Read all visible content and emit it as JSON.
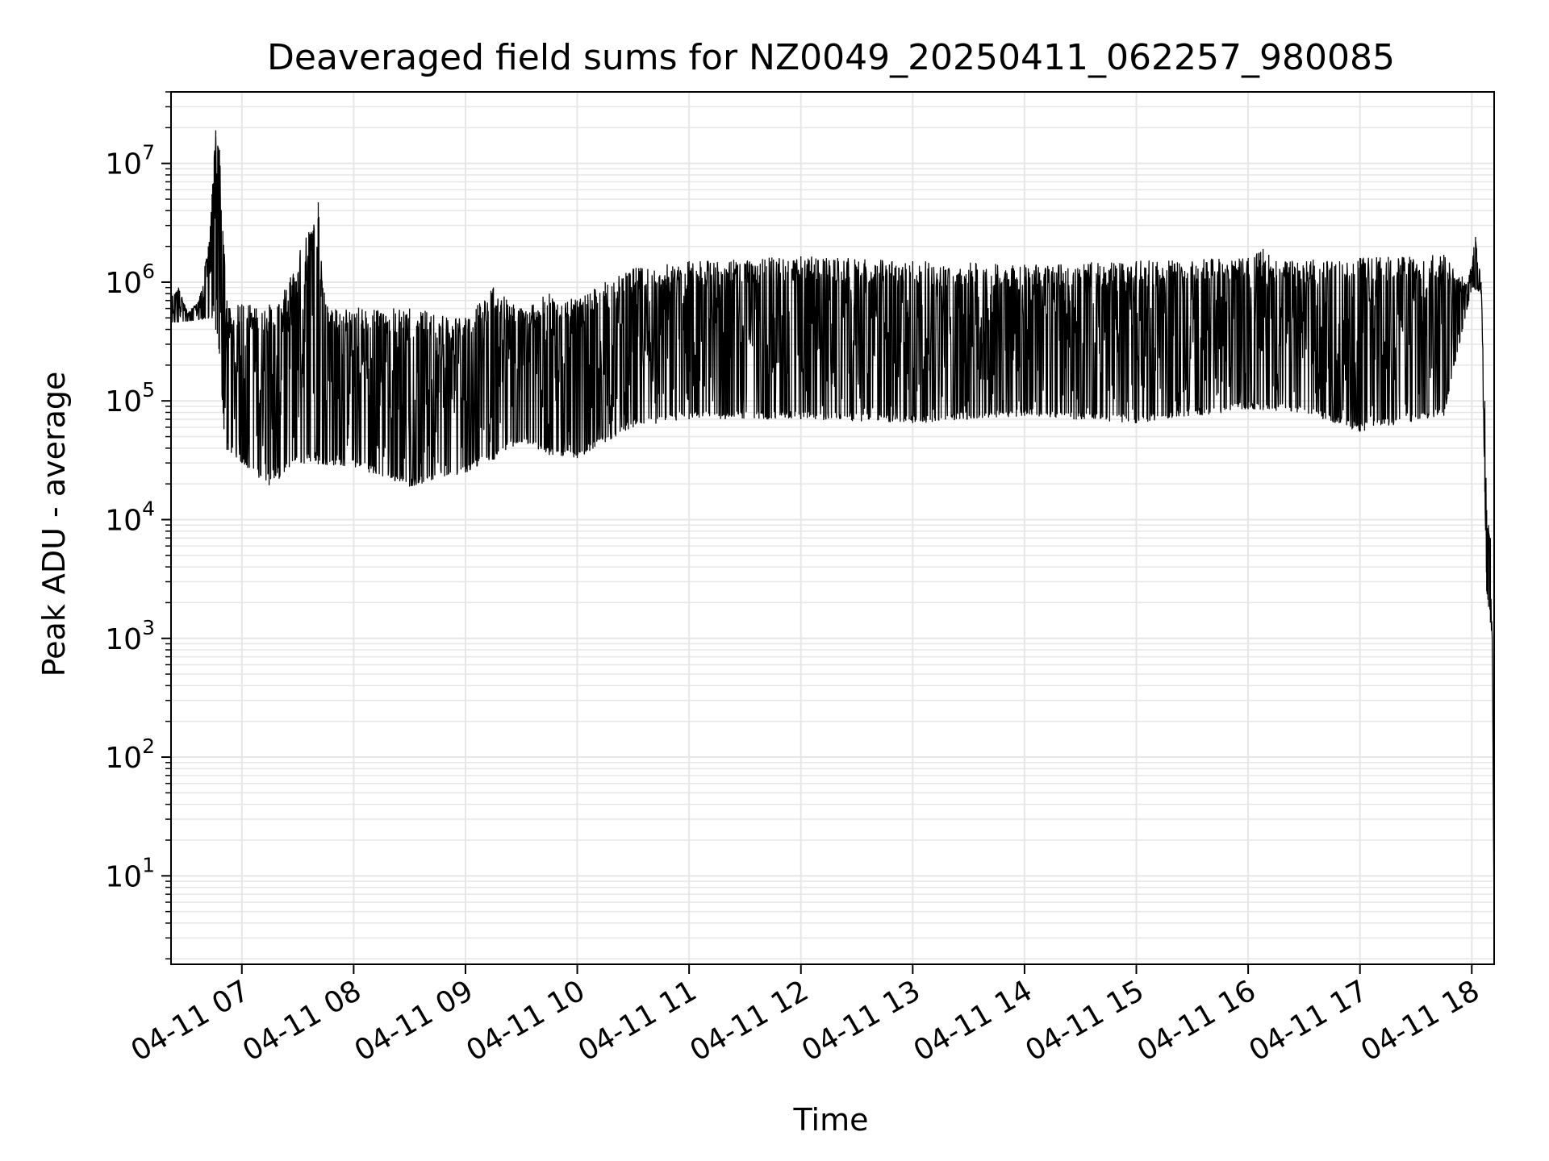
{
  "chart_data": {
    "type": "line",
    "title": "Deaveraged field sums for NZ0049_20250411_062257_980085",
    "xlabel": "Time",
    "ylabel": "Peak ADU - average",
    "y_scale": "log",
    "ylim": [
      1.8,
      40000000
    ],
    "xlim": [
      "04-11 06:22",
      "04-11 18:12"
    ],
    "grid": true,
    "line_color": "#000000",
    "grid_color": "#e6e6e6",
    "x_ticks": [
      {
        "time": "04-11 07:00",
        "label": "04-11 07"
      },
      {
        "time": "04-11 08:00",
        "label": "04-11 08"
      },
      {
        "time": "04-11 09:00",
        "label": "04-11 09"
      },
      {
        "time": "04-11 10:00",
        "label": "04-11 10"
      },
      {
        "time": "04-11 11:00",
        "label": "04-11 11"
      },
      {
        "time": "04-11 12:00",
        "label": "04-11 12"
      },
      {
        "time": "04-11 13:00",
        "label": "04-11 13"
      },
      {
        "time": "04-11 14:00",
        "label": "04-11 14"
      },
      {
        "time": "04-11 15:00",
        "label": "04-11 15"
      },
      {
        "time": "04-11 16:00",
        "label": "04-11 16"
      },
      {
        "time": "04-11 17:00",
        "label": "04-11 17"
      },
      {
        "time": "04-11 18:00",
        "label": "04-11 18"
      }
    ],
    "y_ticks": [
      {
        "value": 10,
        "base": "10",
        "exp": "1"
      },
      {
        "value": 100,
        "base": "10",
        "exp": "2"
      },
      {
        "value": 1000,
        "base": "10",
        "exp": "3"
      },
      {
        "value": 10000,
        "base": "10",
        "exp": "4"
      },
      {
        "value": 100000,
        "base": "10",
        "exp": "5"
      },
      {
        "value": 1000000,
        "base": "10",
        "exp": "6"
      },
      {
        "value": 10000000,
        "base": "10",
        "exp": "7"
      }
    ],
    "series": [
      {
        "upper_envelope": [
          [
            "04-11 06:22",
            800000
          ],
          [
            "04-11 06:26",
            900000
          ],
          [
            "04-11 06:31",
            550000
          ],
          [
            "04-11 06:37",
            700000
          ],
          [
            "04-11 06:42",
            2000000
          ],
          [
            "04-11 06:44",
            5500000
          ],
          [
            "04-11 06:46",
            19000000
          ],
          [
            "04-11 06:48",
            13000000
          ],
          [
            "04-11 06:52",
            700000
          ],
          [
            "04-11 07:00",
            650000
          ],
          [
            "04-11 07:20",
            650000
          ],
          [
            "04-11 07:41",
            4700000
          ],
          [
            "04-11 07:45",
            650000
          ],
          [
            "04-11 08:30",
            600000
          ],
          [
            "04-11 09:00",
            500000
          ],
          [
            "04-11 09:15",
            900000
          ],
          [
            "04-11 09:30",
            600000
          ],
          [
            "04-11 09:45",
            800000
          ],
          [
            "04-11 10:00",
            700000
          ],
          [
            "04-11 10:15",
            1000000
          ],
          [
            "04-11 10:30",
            1300000
          ],
          [
            "04-11 11:00",
            1500000
          ],
          [
            "04-11 12:00",
            1650000
          ],
          [
            "04-11 13:00",
            1500000
          ],
          [
            "04-11 14:00",
            1400000
          ],
          [
            "04-11 15:00",
            1500000
          ],
          [
            "04-11 16:00",
            1600000
          ],
          [
            "04-11 16:08",
            1900000
          ],
          [
            "04-11 16:15",
            1500000
          ],
          [
            "04-11 17:00",
            1600000
          ],
          [
            "04-11 17:45",
            1700000
          ],
          [
            "04-11 17:58",
            1000000
          ],
          [
            "04-11 18:02",
            2400000
          ],
          [
            "04-11 18:05",
            1000000
          ],
          [
            "04-11 18:07",
            100000
          ],
          [
            "04-11 18:08",
            12000
          ],
          [
            "04-11 18:09",
            9000
          ],
          [
            "04-11 18:10",
            7000
          ],
          [
            "04-11 18:11",
            1000
          ],
          [
            "04-11 18:12",
            4
          ]
        ],
        "lower_envelope": [
          [
            "04-11 06:22",
            450000
          ],
          [
            "04-11 06:45",
            500000
          ],
          [
            "04-11 06:48",
            250000
          ],
          [
            "04-11 06:51",
            40000
          ],
          [
            "04-11 07:00",
            30000
          ],
          [
            "04-11 07:15",
            19000
          ],
          [
            "04-11 07:30",
            30000
          ],
          [
            "04-11 08:00",
            28000
          ],
          [
            "04-11 08:30",
            19000
          ],
          [
            "04-11 09:00",
            25000
          ],
          [
            "04-11 09:15",
            32000
          ],
          [
            "04-11 09:30",
            45000
          ],
          [
            "04-11 09:45",
            35000
          ],
          [
            "04-11 10:00",
            33000
          ],
          [
            "04-11 10:15",
            45000
          ],
          [
            "04-11 10:30",
            60000
          ],
          [
            "04-11 11:00",
            70000
          ],
          [
            "04-11 12:00",
            70000
          ],
          [
            "04-11 13:00",
            65000
          ],
          [
            "04-11 14:00",
            75000
          ],
          [
            "04-11 15:00",
            65000
          ],
          [
            "04-11 16:00",
            85000
          ],
          [
            "04-11 16:30",
            80000
          ],
          [
            "04-11 17:00",
            55000
          ],
          [
            "04-11 17:45",
            75000
          ],
          [
            "04-11 18:00",
            900000
          ],
          [
            "04-11 18:05",
            800000
          ],
          [
            "04-11 18:08",
            2500
          ],
          [
            "04-11 18:11",
            1000
          ],
          [
            "04-11 18:12",
            4
          ]
        ]
      }
    ]
  }
}
